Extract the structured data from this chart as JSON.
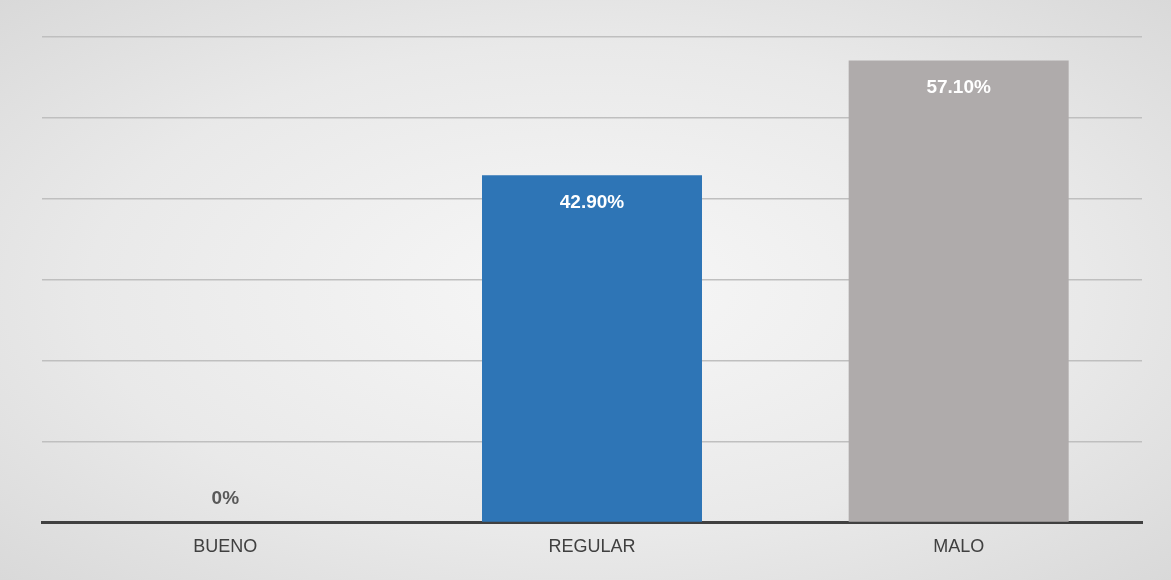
{
  "chart_data": {
    "type": "bar",
    "categories": [
      "BUENO",
      "REGULAR",
      "MALO"
    ],
    "values": [
      0,
      42.9,
      57.1
    ],
    "colors": [
      "#2e75b6",
      "#2e75b6",
      "#afabab"
    ],
    "value_labels": [
      "0%",
      "42.90%",
      "57.10%"
    ],
    "ylim": [
      0,
      60
    ],
    "yticks": [
      {
        "value": 0,
        "label": null
      },
      {
        "value": 10,
        "label": null
      },
      {
        "value": 20,
        "label": null
      },
      {
        "value": 30,
        "label": null
      },
      {
        "value": 40,
        "label": null
      },
      {
        "value": 50,
        "label": null
      },
      {
        "value": 60,
        "label": null
      }
    ],
    "grid": "y",
    "tick_labels": "x"
  }
}
